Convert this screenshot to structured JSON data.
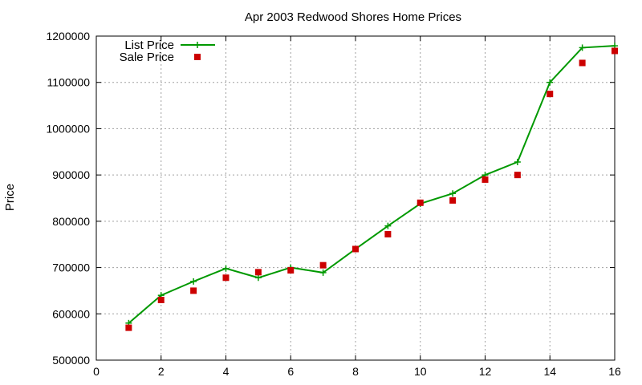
{
  "chart_data": {
    "type": "line",
    "title": "Apr 2003 Redwood Shores Home Prices",
    "xlabel": "",
    "ylabel": "Price",
    "xlim": [
      0,
      16
    ],
    "ylim": [
      500000,
      1200000
    ],
    "xticks": [
      0,
      2,
      4,
      6,
      8,
      10,
      12,
      14,
      16
    ],
    "yticks": [
      500000,
      600000,
      700000,
      800000,
      900000,
      1000000,
      1100000,
      1200000
    ],
    "grid": true,
    "legend_position": "top-left",
    "series": [
      {
        "name": "List Price",
        "style": "line-with-plus-markers",
        "color": "#009900",
        "x": [
          1,
          2,
          3,
          4,
          5,
          6,
          7,
          8,
          9,
          10,
          11,
          12,
          13,
          14,
          15,
          16
        ],
        "y": [
          580000,
          640000,
          670000,
          698000,
          678000,
          700000,
          689000,
          740000,
          790000,
          838000,
          860000,
          900000,
          928000,
          1100000,
          1175000,
          1179000
        ]
      },
      {
        "name": "Sale Price",
        "style": "square-markers",
        "color": "#cc0000",
        "x": [
          1,
          2,
          3,
          4,
          5,
          6,
          7,
          8,
          9,
          10,
          11,
          12,
          13,
          14,
          15,
          16
        ],
        "y": [
          570000,
          630000,
          650000,
          678000,
          690000,
          694000,
          705000,
          740000,
          772000,
          840000,
          845000,
          890000,
          900000,
          1075000,
          1142000,
          1168000
        ]
      }
    ]
  }
}
